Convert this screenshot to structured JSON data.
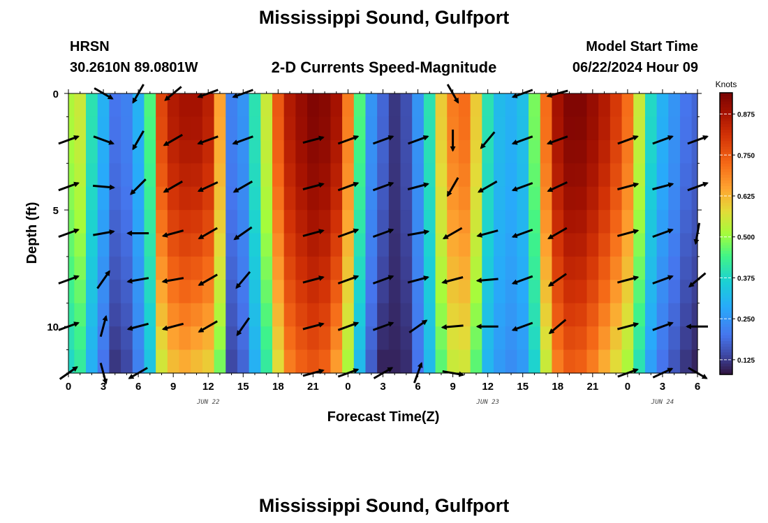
{
  "header": {
    "title": "Mississippi Sound, Gulfport",
    "station": "HRSN",
    "coords": "30.2610N  89.0801W",
    "subtitle": "2-D Currents Speed-Magnitude",
    "model_start_label": "Model Start Time",
    "model_start_value": "06/22/2024 Hour 09",
    "footer_title": "Mississippi Sound, Gulfport"
  },
  "chart_data": {
    "type": "heatmap",
    "xlabel": "Forecast Time(Z)",
    "ylabel": "Depth (ft)",
    "x_range_hours": [
      0,
      54
    ],
    "y_range_ft": [
      0,
      12
    ],
    "x_tick_labels": [
      "0",
      "3",
      "6",
      "9",
      "12",
      "15",
      "18",
      "21",
      "0",
      "3",
      "6",
      "9",
      "12",
      "15",
      "18",
      "21",
      "0",
      "3",
      "6"
    ],
    "y_tick_labels": [
      "0",
      "5",
      "10"
    ],
    "y_tick_values": [
      0,
      5,
      10
    ],
    "date_labels": [
      {
        "text": "JUN 22",
        "hour": 12
      },
      {
        "text": "JUN 23",
        "hour": 36
      },
      {
        "text": "JUN 24",
        "hour": 51
      }
    ],
    "colorbar": {
      "unit": "Knots",
      "range": [
        0.08,
        0.94
      ],
      "ticks": [
        "0.125",
        "0.250",
        "0.375",
        "0.500",
        "0.625",
        "0.750",
        "0.875"
      ],
      "tick_values": [
        0.125,
        0.25,
        0.375,
        0.5,
        0.625,
        0.75,
        0.875
      ],
      "colormap": "turbo"
    },
    "speed_profile": {
      "hours": [
        0,
        1,
        2,
        3,
        4,
        5,
        6,
        7,
        8,
        9,
        10,
        11,
        12,
        13,
        14,
        15,
        16,
        17,
        18,
        19,
        20,
        21,
        22,
        23,
        24,
        25,
        26,
        27,
        28,
        29,
        30,
        31,
        32,
        33,
        34,
        35,
        36,
        37,
        38,
        39,
        40,
        41,
        42,
        43,
        44,
        45,
        46,
        47,
        48,
        49,
        50,
        51,
        52,
        53,
        54
      ],
      "surface_knots": [
        0.52,
        0.55,
        0.4,
        0.3,
        0.2,
        0.22,
        0.3,
        0.45,
        0.78,
        0.86,
        0.88,
        0.88,
        0.85,
        0.65,
        0.22,
        0.25,
        0.4,
        0.55,
        0.75,
        0.86,
        0.9,
        0.93,
        0.92,
        0.88,
        0.7,
        0.45,
        0.25,
        0.18,
        0.12,
        0.15,
        0.25,
        0.4,
        0.6,
        0.7,
        0.72,
        0.6,
        0.4,
        0.32,
        0.3,
        0.33,
        0.48,
        0.72,
        0.88,
        0.93,
        0.93,
        0.9,
        0.86,
        0.8,
        0.72,
        0.55,
        0.38,
        0.3,
        0.25,
        0.2,
        0.18
      ],
      "bottom_knots": [
        0.38,
        0.42,
        0.3,
        0.2,
        0.12,
        0.14,
        0.22,
        0.34,
        0.56,
        0.62,
        0.64,
        0.62,
        0.6,
        0.48,
        0.14,
        0.18,
        0.3,
        0.42,
        0.58,
        0.7,
        0.74,
        0.76,
        0.74,
        0.66,
        0.52,
        0.32,
        0.17,
        0.1,
        0.1,
        0.11,
        0.2,
        0.32,
        0.46,
        0.55,
        0.56,
        0.46,
        0.31,
        0.26,
        0.24,
        0.26,
        0.37,
        0.55,
        0.7,
        0.75,
        0.74,
        0.7,
        0.64,
        0.58,
        0.52,
        0.4,
        0.27,
        0.2,
        0.16,
        0.12,
        0.1
      ]
    },
    "vector_depths_ft": [
      0,
      2,
      4,
      6,
      8,
      10,
      12
    ],
    "vectors": [
      {
        "hour": 0,
        "dirs": [
          null,
          70,
          70,
          70,
          70,
          70,
          55
        ]
      },
      {
        "hour": 3,
        "dirs": [
          120,
          110,
          95,
          80,
          35,
          15,
          165
        ]
      },
      {
        "hour": 6,
        "dirs": [
          210,
          210,
          225,
          270,
          260,
          255,
          240
        ]
      },
      {
        "hour": 9,
        "dirs": [
          230,
          240,
          240,
          255,
          260,
          255,
          null
        ]
      },
      {
        "hour": 12,
        "dirs": [
          250,
          250,
          245,
          240,
          240,
          240,
          null
        ]
      },
      {
        "hour": 15,
        "dirs": [
          250,
          250,
          240,
          235,
          220,
          215,
          null
        ]
      },
      {
        "hour": 21,
        "dirs": [
          null,
          75,
          75,
          75,
          75,
          75,
          75
        ]
      },
      {
        "hour": 24,
        "dirs": [
          null,
          70,
          70,
          70,
          70,
          70,
          70
        ]
      },
      {
        "hour": 27,
        "dirs": [
          null,
          70,
          70,
          70,
          70,
          70,
          60
        ]
      },
      {
        "hour": 30,
        "dirs": [
          null,
          70,
          75,
          80,
          75,
          55,
          20
        ]
      },
      {
        "hour": 33,
        "dirs": [
          150,
          180,
          210,
          240,
          255,
          265,
          100
        ]
      },
      {
        "hour": 36,
        "dirs": [
          null,
          220,
          240,
          255,
          265,
          270,
          null
        ]
      },
      {
        "hour": 39,
        "dirs": [
          250,
          250,
          250,
          250,
          250,
          250,
          null
        ]
      },
      {
        "hour": 42,
        "dirs": [
          255,
          250,
          245,
          240,
          235,
          230,
          null
        ]
      },
      {
        "hour": 48,
        "dirs": [
          null,
          70,
          75,
          75,
          75,
          75,
          70
        ]
      },
      {
        "hour": 51,
        "dirs": [
          null,
          70,
          75,
          70,
          70,
          70,
          65
        ]
      },
      {
        "hour": 54,
        "dirs": [
          null,
          70,
          70,
          190,
          230,
          270,
          120
        ]
      }
    ]
  }
}
